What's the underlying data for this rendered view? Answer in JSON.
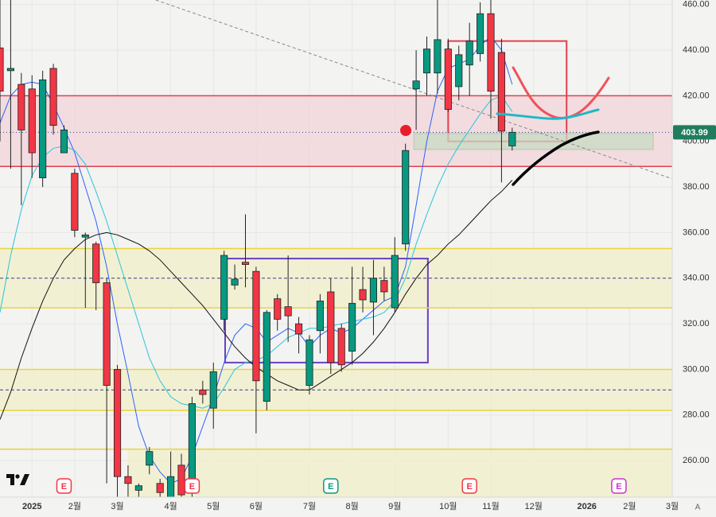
{
  "chart_data": {
    "type": "candlestick",
    "x": [
      -3,
      -2,
      -1,
      0,
      1,
      2,
      3,
      4,
      5,
      6,
      7,
      8,
      9,
      10,
      11,
      12,
      13,
      14,
      15,
      16,
      17,
      18,
      19,
      20,
      21,
      22,
      23,
      24,
      25,
      26,
      27,
      28,
      29,
      30,
      31,
      32,
      33,
      34,
      35,
      36,
      37,
      38,
      39,
      40,
      41,
      42,
      43,
      44,
      45
    ],
    "open": [
      441,
      431,
      425,
      423,
      384,
      432,
      395,
      386,
      358,
      355,
      338,
      300,
      253,
      247,
      258,
      250,
      244,
      258,
      246,
      291,
      283,
      322,
      337,
      347,
      343,
      286,
      331,
      327.5,
      320,
      293,
      317,
      334,
      318,
      308,
      335,
      329.5,
      339,
      327,
      355,
      423,
      430,
      430,
      440.5,
      424,
      433.5,
      438.5,
      456,
      439,
      398
    ],
    "high": [
      462,
      462,
      430,
      429,
      431,
      434,
      407,
      388,
      360,
      356,
      340,
      302,
      258,
      250,
      266,
      252,
      264,
      263,
      288,
      295,
      303,
      352,
      346,
      368,
      345,
      326,
      333,
      350,
      323,
      315,
      333,
      340,
      320,
      345,
      345,
      348,
      345,
      358,
      399,
      440,
      446,
      462,
      445,
      442,
      452,
      461,
      462,
      445,
      406
    ],
    "low": [
      400,
      388,
      372,
      384,
      380,
      403,
      395,
      358,
      327,
      326,
      250,
      244,
      244,
      244,
      254,
      244,
      244,
      244,
      244,
      285,
      274,
      317,
      335,
      336,
      272,
      282,
      317,
      312,
      307,
      289,
      307,
      298,
      299,
      302,
      325,
      315,
      330,
      325,
      352,
      405,
      420,
      421,
      413,
      418,
      420,
      435,
      410,
      382,
      396
    ],
    "close": [
      422,
      432,
      405,
      395,
      427,
      407,
      405,
      361,
      359,
      338,
      293,
      253,
      250,
      249,
      264,
      246,
      253,
      245,
      285,
      289,
      299,
      350,
      339.6,
      346,
      295,
      325,
      322,
      323.5,
      315.5,
      313,
      330,
      303,
      302,
      329,
      330.5,
      340,
      334,
      350,
      396,
      426.5,
      440.5,
      444.6,
      414,
      438,
      444,
      456,
      422,
      404.5,
      403.99
    ],
    "up_color": "#089981",
    "down_color": "#f23645",
    "series": [
      {
        "color": "#2962ff",
        "values": [
          408,
          420,
          425,
          426,
          425,
          416,
          406,
          395,
          380,
          365,
          345,
          320,
          298,
          275,
          262,
          255,
          250,
          252,
          262,
          275,
          288,
          303,
          315,
          320,
          318,
          312,
          315,
          318,
          316,
          310,
          315,
          318,
          316,
          318,
          322,
          326,
          330,
          332,
          345,
          372,
          400,
          422,
          432,
          434,
          436,
          442,
          446,
          440,
          425
        ]
      },
      {
        "color": "#26c6da",
        "values": [
          325,
          350,
          370,
          385,
          393,
          397,
          398,
          396,
          390,
          378,
          365,
          350,
          335,
          320,
          305,
          295,
          288,
          285,
          284,
          283,
          285,
          292,
          300,
          303,
          304,
          306,
          310,
          314,
          316,
          318,
          318,
          319,
          320,
          321,
          322,
          323,
          325,
          330,
          340,
          355,
          368,
          380,
          390,
          398,
          405,
          412,
          418,
          420,
          413
        ]
      },
      {
        "color": "#111111",
        "values": [
          278,
          290,
          305,
          318,
          330,
          340,
          348,
          353,
          357,
          359,
          360,
          359,
          357,
          355,
          352,
          348,
          343,
          338,
          333,
          328,
          322,
          316,
          310,
          305,
          301,
          298,
          295,
          293,
          291,
          291,
          294,
          297,
          300,
          303,
          307,
          312,
          318,
          325,
          333,
          340,
          346,
          350,
          355,
          359,
          364,
          369,
          374,
          378,
          383
        ]
      }
    ],
    "xlim": [
      -3,
      60
    ],
    "xticks": [
      {
        "value": 0,
        "label": "2025"
      },
      {
        "value": 4,
        "label": "2월"
      },
      {
        "value": 8,
        "label": "3월"
      },
      {
        "value": 13,
        "label": "4월"
      },
      {
        "value": 17,
        "label": "5월"
      },
      {
        "value": 21,
        "label": "6월"
      },
      {
        "value": 26,
        "label": "7월"
      },
      {
        "value": 30,
        "label": "8월"
      },
      {
        "value": 34,
        "label": "9월"
      },
      {
        "value": 39,
        "label": "10월"
      },
      {
        "value": 43,
        "label": "11월"
      },
      {
        "value": 47,
        "label": "12월"
      },
      {
        "value": 52,
        "label": "2026"
      },
      {
        "value": 56,
        "label": "2월"
      },
      {
        "value": 60,
        "label": "3월"
      }
    ],
    "ylim": [
      244,
      462
    ],
    "yticks": [
      {
        "value": 260,
        "label": "260.00"
      },
      {
        "value": 280,
        "label": "280.00"
      },
      {
        "value": 300,
        "label": "300.00"
      },
      {
        "value": 320,
        "label": "320.00"
      },
      {
        "value": 340,
        "label": "340.00"
      },
      {
        "value": 360,
        "label": "360.00"
      },
      {
        "value": 380,
        "label": "380.00"
      },
      {
        "value": 400,
        "label": "400.00"
      },
      {
        "value": 420,
        "label": "420.00"
      },
      {
        "value": 440,
        "label": "440.00"
      },
      {
        "value": 460,
        "label": "460.00"
      }
    ],
    "last_price": 403.99,
    "zones": [
      {
        "from": 389,
        "to": 420,
        "x0": -3,
        "x1": 60,
        "color": "#f2d4d8"
      },
      {
        "from": 327,
        "to": 353,
        "x0": -3,
        "x1": 60,
        "color": "#f2efc8"
      },
      {
        "from": 282,
        "to": 300,
        "x0": -3,
        "x1": 60,
        "color": "#f2efc8"
      },
      {
        "from": 244,
        "to": 265,
        "x0": 9,
        "x1": 60,
        "color": "#f2efc8"
      }
    ],
    "levels": [
      {
        "value": 420,
        "color": "#e0404f"
      },
      {
        "value": 389,
        "color": "#e0404f"
      },
      {
        "value": 353,
        "color": "#e8d440"
      },
      {
        "value": 327,
        "color": "#e8d440"
      },
      {
        "value": 300,
        "color": "#e8d440"
      },
      {
        "value": 282,
        "color": "#e8d440"
      },
      {
        "value": 265,
        "color": "#e8d440"
      }
    ],
    "dashed_levels": [
      {
        "value": 340,
        "color": "#3a3a8c"
      },
      {
        "value": 291,
        "color": "#3a3a8c"
      },
      {
        "value": 244,
        "color": "#3a3a8c"
      }
    ],
    "boxes": [
      {
        "x0": 18.1,
        "x1": 37.1,
        "y0": 303,
        "y1": 348.6,
        "color": "#6a3fc0",
        "fill": "none"
      },
      {
        "x0": 39,
        "x1": 50.1,
        "y0": 400,
        "y1": 444,
        "color": "#e0404f",
        "fill": "none"
      },
      {
        "x0": 35.8,
        "x1": 58.2,
        "y0": 396.5,
        "y1": 403.5,
        "color": "#b9cfb3",
        "fill": "#c9dbc4"
      }
    ],
    "trendline": {
      "x": [
        11.6,
        60
      ],
      "y": [
        462,
        383.6
      ]
    },
    "events": [
      {
        "x": 3,
        "label": "E",
        "color": "#f23645"
      },
      {
        "x": 15,
        "label": "E",
        "color": "#f23645"
      },
      {
        "x": 28,
        "label": "E",
        "color": "#089981"
      },
      {
        "x": 41,
        "label": "E",
        "color": "#f23645"
      },
      {
        "x": 55,
        "label": "E",
        "color": "#cc33cc"
      }
    ],
    "scale_mode": "A"
  }
}
